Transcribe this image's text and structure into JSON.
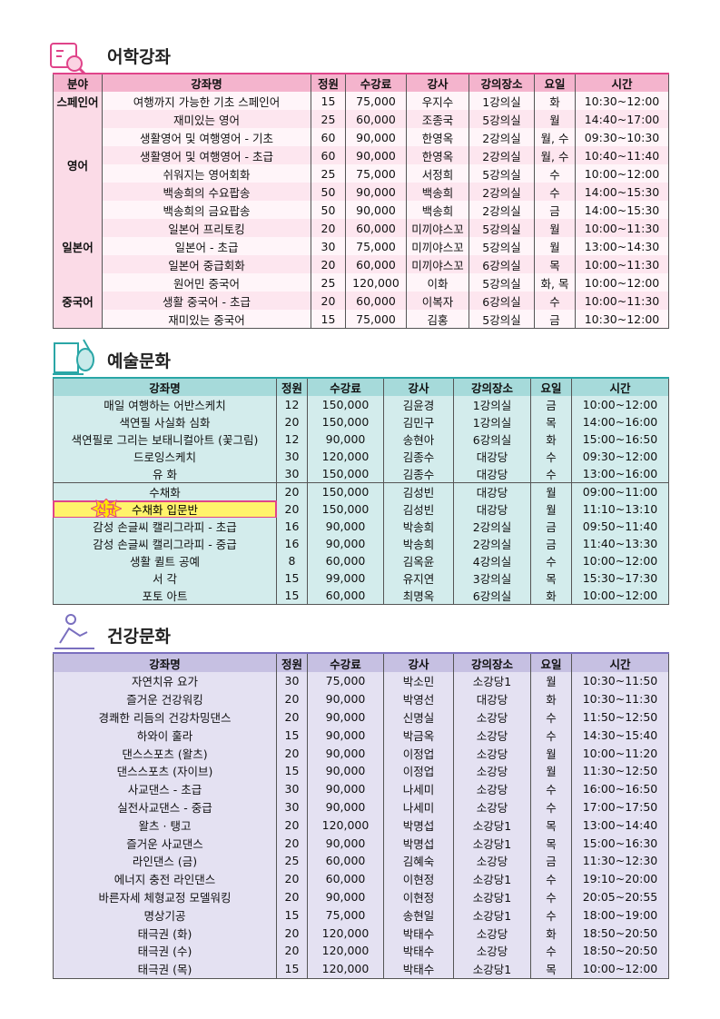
{
  "sections": [
    {
      "title": "어학강좌",
      "headers": [
        "분야",
        "강좌명",
        "정원",
        "수강료",
        "강사",
        "강의장소",
        "요일",
        "시간"
      ],
      "groups": [
        {
          "field": "스페인어",
          "rows": [
            [
              "여행까지 가능한 기초 스페인어",
              "15",
              "75,000",
              "우지수",
              "1강의실",
              "화",
              "10:30~12:00"
            ]
          ]
        },
        {
          "field": "영어",
          "rows": [
            [
              "재미있는 영어",
              "25",
              "60,000",
              "조종국",
              "5강의실",
              "월",
              "14:40~17:00"
            ],
            [
              "생활영어 및 여행영어 - 기초",
              "60",
              "90,000",
              "한영옥",
              "2강의실",
              "월, 수",
              "09:30~10:30"
            ],
            [
              "생활영어 및 여행영어 - 초급",
              "60",
              "90,000",
              "한영옥",
              "2강의실",
              "월, 수",
              "10:40~11:40"
            ],
            [
              "쉬워지는 영어회화",
              "25",
              "75,000",
              "서정희",
              "5강의실",
              "수",
              "10:00~12:00"
            ],
            [
              "백송희의 수요팝송",
              "50",
              "90,000",
              "백송희",
              "2강의실",
              "수",
              "14:00~15:30"
            ],
            [
              "백송희의 금요팝송",
              "50",
              "90,000",
              "백송희",
              "2강의실",
              "금",
              "14:00~15:30"
            ]
          ]
        },
        {
          "field": "일본어",
          "rows": [
            [
              "일본어 프리토킹",
              "20",
              "60,000",
              "미끼야스꼬",
              "5강의실",
              "월",
              "10:00~11:30"
            ],
            [
              "일본어 - 초급",
              "30",
              "75,000",
              "미끼야스꼬",
              "5강의실",
              "월",
              "13:00~14:30"
            ],
            [
              "일본어 중급회화",
              "20",
              "60,000",
              "미끼야스꼬",
              "6강의실",
              "목",
              "10:00~11:30"
            ]
          ]
        },
        {
          "field": "중국어",
          "rows": [
            [
              "원어민 중국어",
              "25",
              "120,000",
              "이화",
              "5강의실",
              "화, 목",
              "10:00~12:00"
            ],
            [
              "생활 중국어 - 초급",
              "20",
              "60,000",
              "이복자",
              "6강의실",
              "수",
              "10:00~11:30"
            ],
            [
              "재미있는 중국어",
              "15",
              "75,000",
              "김홍",
              "5강의실",
              "금",
              "10:30~12:00"
            ]
          ]
        }
      ]
    },
    {
      "title": "예술문화",
      "headers": [
        "강좌명",
        "정원",
        "수강료",
        "강사",
        "강의장소",
        "요일",
        "시간"
      ],
      "rows": [
        [
          "매일 여행하는 어반스케치",
          "12",
          "150,000",
          "김윤경",
          "1강의실",
          "금",
          "10:00~12:00"
        ],
        [
          "색연필 사실화 심화",
          "20",
          "150,000",
          "김민구",
          "1강의실",
          "목",
          "14:00~16:00"
        ],
        [
          "색연필로 그리는 보태니컬아트 (꽃그림)",
          "12",
          "90,000",
          "송현아",
          "6강의실",
          "화",
          "15:00~16:50"
        ],
        [
          "드로잉스케치",
          "30",
          "120,000",
          "김종수",
          "대강당",
          "수",
          "09:30~12:00"
        ],
        [
          "유 화",
          "30",
          "150,000",
          "김종수",
          "대강당",
          "수",
          "13:00~16:00"
        ],
        [
          "수채화",
          "20",
          "150,000",
          "김성빈",
          "대강당",
          "월",
          "09:00~11:00"
        ],
        {
          "badge": "신규",
          "cells": [
            "수채화 입문반",
            "20",
            "150,000",
            "김성빈",
            "대강당",
            "월",
            "11:10~13:10"
          ]
        },
        [
          "감성 손글씨 캘리그라피 - 초급",
          "16",
          "90,000",
          "박송희",
          "2강의실",
          "금",
          "09:50~11:40"
        ],
        [
          "감성 손글씨 캘리그라피 - 중급",
          "16",
          "90,000",
          "박송희",
          "2강의실",
          "금",
          "11:40~13:30"
        ],
        [
          "생활 퀼트 공예",
          "8",
          "60,000",
          "김옥윤",
          "4강의실",
          "수",
          "10:00~12:00"
        ],
        [
          "서 각",
          "15",
          "99,000",
          "유지연",
          "3강의실",
          "목",
          "15:30~17:30"
        ],
        [
          "포토 아트",
          "15",
          "60,000",
          "최명옥",
          "6강의실",
          "화",
          "10:00~12:00"
        ]
      ]
    },
    {
      "title": "건강문화",
      "headers": [
        "강좌명",
        "정원",
        "수강료",
        "강사",
        "강의장소",
        "요일",
        "시간"
      ],
      "rows": [
        [
          "자연치유 요가",
          "30",
          "75,000",
          "박소민",
          "소강당1",
          "월",
          "10:30~11:50"
        ],
        [
          "즐거운 건강워킹",
          "20",
          "90,000",
          "박영선",
          "대강당",
          "화",
          "10:30~11:30"
        ],
        [
          "경쾌한 리듬의 건강차밍댄스",
          "20",
          "90,000",
          "신명실",
          "소강당",
          "수",
          "11:50~12:50"
        ],
        [
          "하와이 훌라",
          "15",
          "90,000",
          "박금옥",
          "소강당",
          "수",
          "14:30~15:40"
        ],
        [
          "댄스스포츠 (왈츠)",
          "20",
          "90,000",
          "이정업",
          "소강당",
          "월",
          "10:00~11:20"
        ],
        [
          "댄스스포츠 (자이브)",
          "15",
          "90,000",
          "이정업",
          "소강당",
          "월",
          "11:30~12:50"
        ],
        [
          "사교댄스 - 초급",
          "30",
          "90,000",
          "나세미",
          "소강당",
          "수",
          "16:00~16:50"
        ],
        [
          "실전사교댄스 - 중급",
          "30",
          "90,000",
          "나세미",
          "소강당",
          "수",
          "17:00~17:50"
        ],
        [
          "왈츠 · 탱고",
          "20",
          "120,000",
          "박명섭",
          "소강당1",
          "목",
          "13:00~14:40"
        ],
        [
          "즐거운 사교댄스",
          "20",
          "90,000",
          "박명섭",
          "소강당1",
          "목",
          "15:00~16:30"
        ],
        [
          "라인댄스 (금)",
          "25",
          "60,000",
          "김혜숙",
          "소강당",
          "금",
          "11:30~12:30"
        ],
        [
          "에너지 충전 라인댄스",
          "20",
          "60,000",
          "이현정",
          "소강당1",
          "수",
          "19:10~20:00"
        ],
        [
          "바른자세 체형교정 모델워킹",
          "20",
          "90,000",
          "이현정",
          "소강당1",
          "수",
          "20:05~20:55"
        ],
        [
          "명상기공",
          "15",
          "75,000",
          "송현일",
          "소강당1",
          "수",
          "18:00~19:00"
        ],
        [
          "태극권 (화)",
          "20",
          "120,000",
          "박태수",
          "소강당",
          "화",
          "18:50~20:50"
        ],
        [
          "태극권 (수)",
          "20",
          "120,000",
          "박태수",
          "소강당",
          "수",
          "18:50~20:50"
        ],
        [
          "태극권 (목)",
          "15",
          "120,000",
          "박태수",
          "소강당1",
          "목",
          "10:00~12:00"
        ]
      ]
    }
  ]
}
